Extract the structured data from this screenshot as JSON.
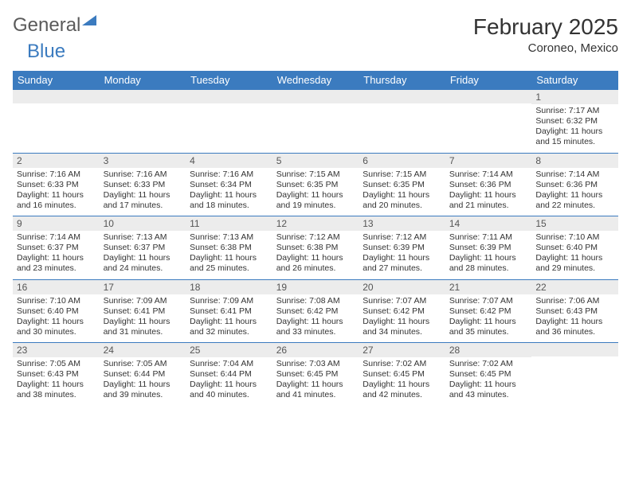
{
  "logo": {
    "word1": "General",
    "word2": "Blue"
  },
  "title": "February 2025",
  "location": "Coroneo, Mexico",
  "colors": {
    "header_bg": "#3b7bbf",
    "header_text": "#ffffff",
    "daynum_bg": "#ececec",
    "border": "#3b7bbf",
    "text": "#333333"
  },
  "day_headers": [
    "Sunday",
    "Monday",
    "Tuesday",
    "Wednesday",
    "Thursday",
    "Friday",
    "Saturday"
  ],
  "weeks": [
    [
      {
        "day": "",
        "sunrise": "",
        "sunset": "",
        "daylight": ""
      },
      {
        "day": "",
        "sunrise": "",
        "sunset": "",
        "daylight": ""
      },
      {
        "day": "",
        "sunrise": "",
        "sunset": "",
        "daylight": ""
      },
      {
        "day": "",
        "sunrise": "",
        "sunset": "",
        "daylight": ""
      },
      {
        "day": "",
        "sunrise": "",
        "sunset": "",
        "daylight": ""
      },
      {
        "day": "",
        "sunrise": "",
        "sunset": "",
        "daylight": ""
      },
      {
        "day": "1",
        "sunrise": "Sunrise: 7:17 AM",
        "sunset": "Sunset: 6:32 PM",
        "daylight": "Daylight: 11 hours and 15 minutes."
      }
    ],
    [
      {
        "day": "2",
        "sunrise": "Sunrise: 7:16 AM",
        "sunset": "Sunset: 6:33 PM",
        "daylight": "Daylight: 11 hours and 16 minutes."
      },
      {
        "day": "3",
        "sunrise": "Sunrise: 7:16 AM",
        "sunset": "Sunset: 6:33 PM",
        "daylight": "Daylight: 11 hours and 17 minutes."
      },
      {
        "day": "4",
        "sunrise": "Sunrise: 7:16 AM",
        "sunset": "Sunset: 6:34 PM",
        "daylight": "Daylight: 11 hours and 18 minutes."
      },
      {
        "day": "5",
        "sunrise": "Sunrise: 7:15 AM",
        "sunset": "Sunset: 6:35 PM",
        "daylight": "Daylight: 11 hours and 19 minutes."
      },
      {
        "day": "6",
        "sunrise": "Sunrise: 7:15 AM",
        "sunset": "Sunset: 6:35 PM",
        "daylight": "Daylight: 11 hours and 20 minutes."
      },
      {
        "day": "7",
        "sunrise": "Sunrise: 7:14 AM",
        "sunset": "Sunset: 6:36 PM",
        "daylight": "Daylight: 11 hours and 21 minutes."
      },
      {
        "day": "8",
        "sunrise": "Sunrise: 7:14 AM",
        "sunset": "Sunset: 6:36 PM",
        "daylight": "Daylight: 11 hours and 22 minutes."
      }
    ],
    [
      {
        "day": "9",
        "sunrise": "Sunrise: 7:14 AM",
        "sunset": "Sunset: 6:37 PM",
        "daylight": "Daylight: 11 hours and 23 minutes."
      },
      {
        "day": "10",
        "sunrise": "Sunrise: 7:13 AM",
        "sunset": "Sunset: 6:37 PM",
        "daylight": "Daylight: 11 hours and 24 minutes."
      },
      {
        "day": "11",
        "sunrise": "Sunrise: 7:13 AM",
        "sunset": "Sunset: 6:38 PM",
        "daylight": "Daylight: 11 hours and 25 minutes."
      },
      {
        "day": "12",
        "sunrise": "Sunrise: 7:12 AM",
        "sunset": "Sunset: 6:38 PM",
        "daylight": "Daylight: 11 hours and 26 minutes."
      },
      {
        "day": "13",
        "sunrise": "Sunrise: 7:12 AM",
        "sunset": "Sunset: 6:39 PM",
        "daylight": "Daylight: 11 hours and 27 minutes."
      },
      {
        "day": "14",
        "sunrise": "Sunrise: 7:11 AM",
        "sunset": "Sunset: 6:39 PM",
        "daylight": "Daylight: 11 hours and 28 minutes."
      },
      {
        "day": "15",
        "sunrise": "Sunrise: 7:10 AM",
        "sunset": "Sunset: 6:40 PM",
        "daylight": "Daylight: 11 hours and 29 minutes."
      }
    ],
    [
      {
        "day": "16",
        "sunrise": "Sunrise: 7:10 AM",
        "sunset": "Sunset: 6:40 PM",
        "daylight": "Daylight: 11 hours and 30 minutes."
      },
      {
        "day": "17",
        "sunrise": "Sunrise: 7:09 AM",
        "sunset": "Sunset: 6:41 PM",
        "daylight": "Daylight: 11 hours and 31 minutes."
      },
      {
        "day": "18",
        "sunrise": "Sunrise: 7:09 AM",
        "sunset": "Sunset: 6:41 PM",
        "daylight": "Daylight: 11 hours and 32 minutes."
      },
      {
        "day": "19",
        "sunrise": "Sunrise: 7:08 AM",
        "sunset": "Sunset: 6:42 PM",
        "daylight": "Daylight: 11 hours and 33 minutes."
      },
      {
        "day": "20",
        "sunrise": "Sunrise: 7:07 AM",
        "sunset": "Sunset: 6:42 PM",
        "daylight": "Daylight: 11 hours and 34 minutes."
      },
      {
        "day": "21",
        "sunrise": "Sunrise: 7:07 AM",
        "sunset": "Sunset: 6:42 PM",
        "daylight": "Daylight: 11 hours and 35 minutes."
      },
      {
        "day": "22",
        "sunrise": "Sunrise: 7:06 AM",
        "sunset": "Sunset: 6:43 PM",
        "daylight": "Daylight: 11 hours and 36 minutes."
      }
    ],
    [
      {
        "day": "23",
        "sunrise": "Sunrise: 7:05 AM",
        "sunset": "Sunset: 6:43 PM",
        "daylight": "Daylight: 11 hours and 38 minutes."
      },
      {
        "day": "24",
        "sunrise": "Sunrise: 7:05 AM",
        "sunset": "Sunset: 6:44 PM",
        "daylight": "Daylight: 11 hours and 39 minutes."
      },
      {
        "day": "25",
        "sunrise": "Sunrise: 7:04 AM",
        "sunset": "Sunset: 6:44 PM",
        "daylight": "Daylight: 11 hours and 40 minutes."
      },
      {
        "day": "26",
        "sunrise": "Sunrise: 7:03 AM",
        "sunset": "Sunset: 6:45 PM",
        "daylight": "Daylight: 11 hours and 41 minutes."
      },
      {
        "day": "27",
        "sunrise": "Sunrise: 7:02 AM",
        "sunset": "Sunset: 6:45 PM",
        "daylight": "Daylight: 11 hours and 42 minutes."
      },
      {
        "day": "28",
        "sunrise": "Sunrise: 7:02 AM",
        "sunset": "Sunset: 6:45 PM",
        "daylight": "Daylight: 11 hours and 43 minutes."
      },
      {
        "day": "",
        "sunrise": "",
        "sunset": "",
        "daylight": ""
      }
    ]
  ]
}
